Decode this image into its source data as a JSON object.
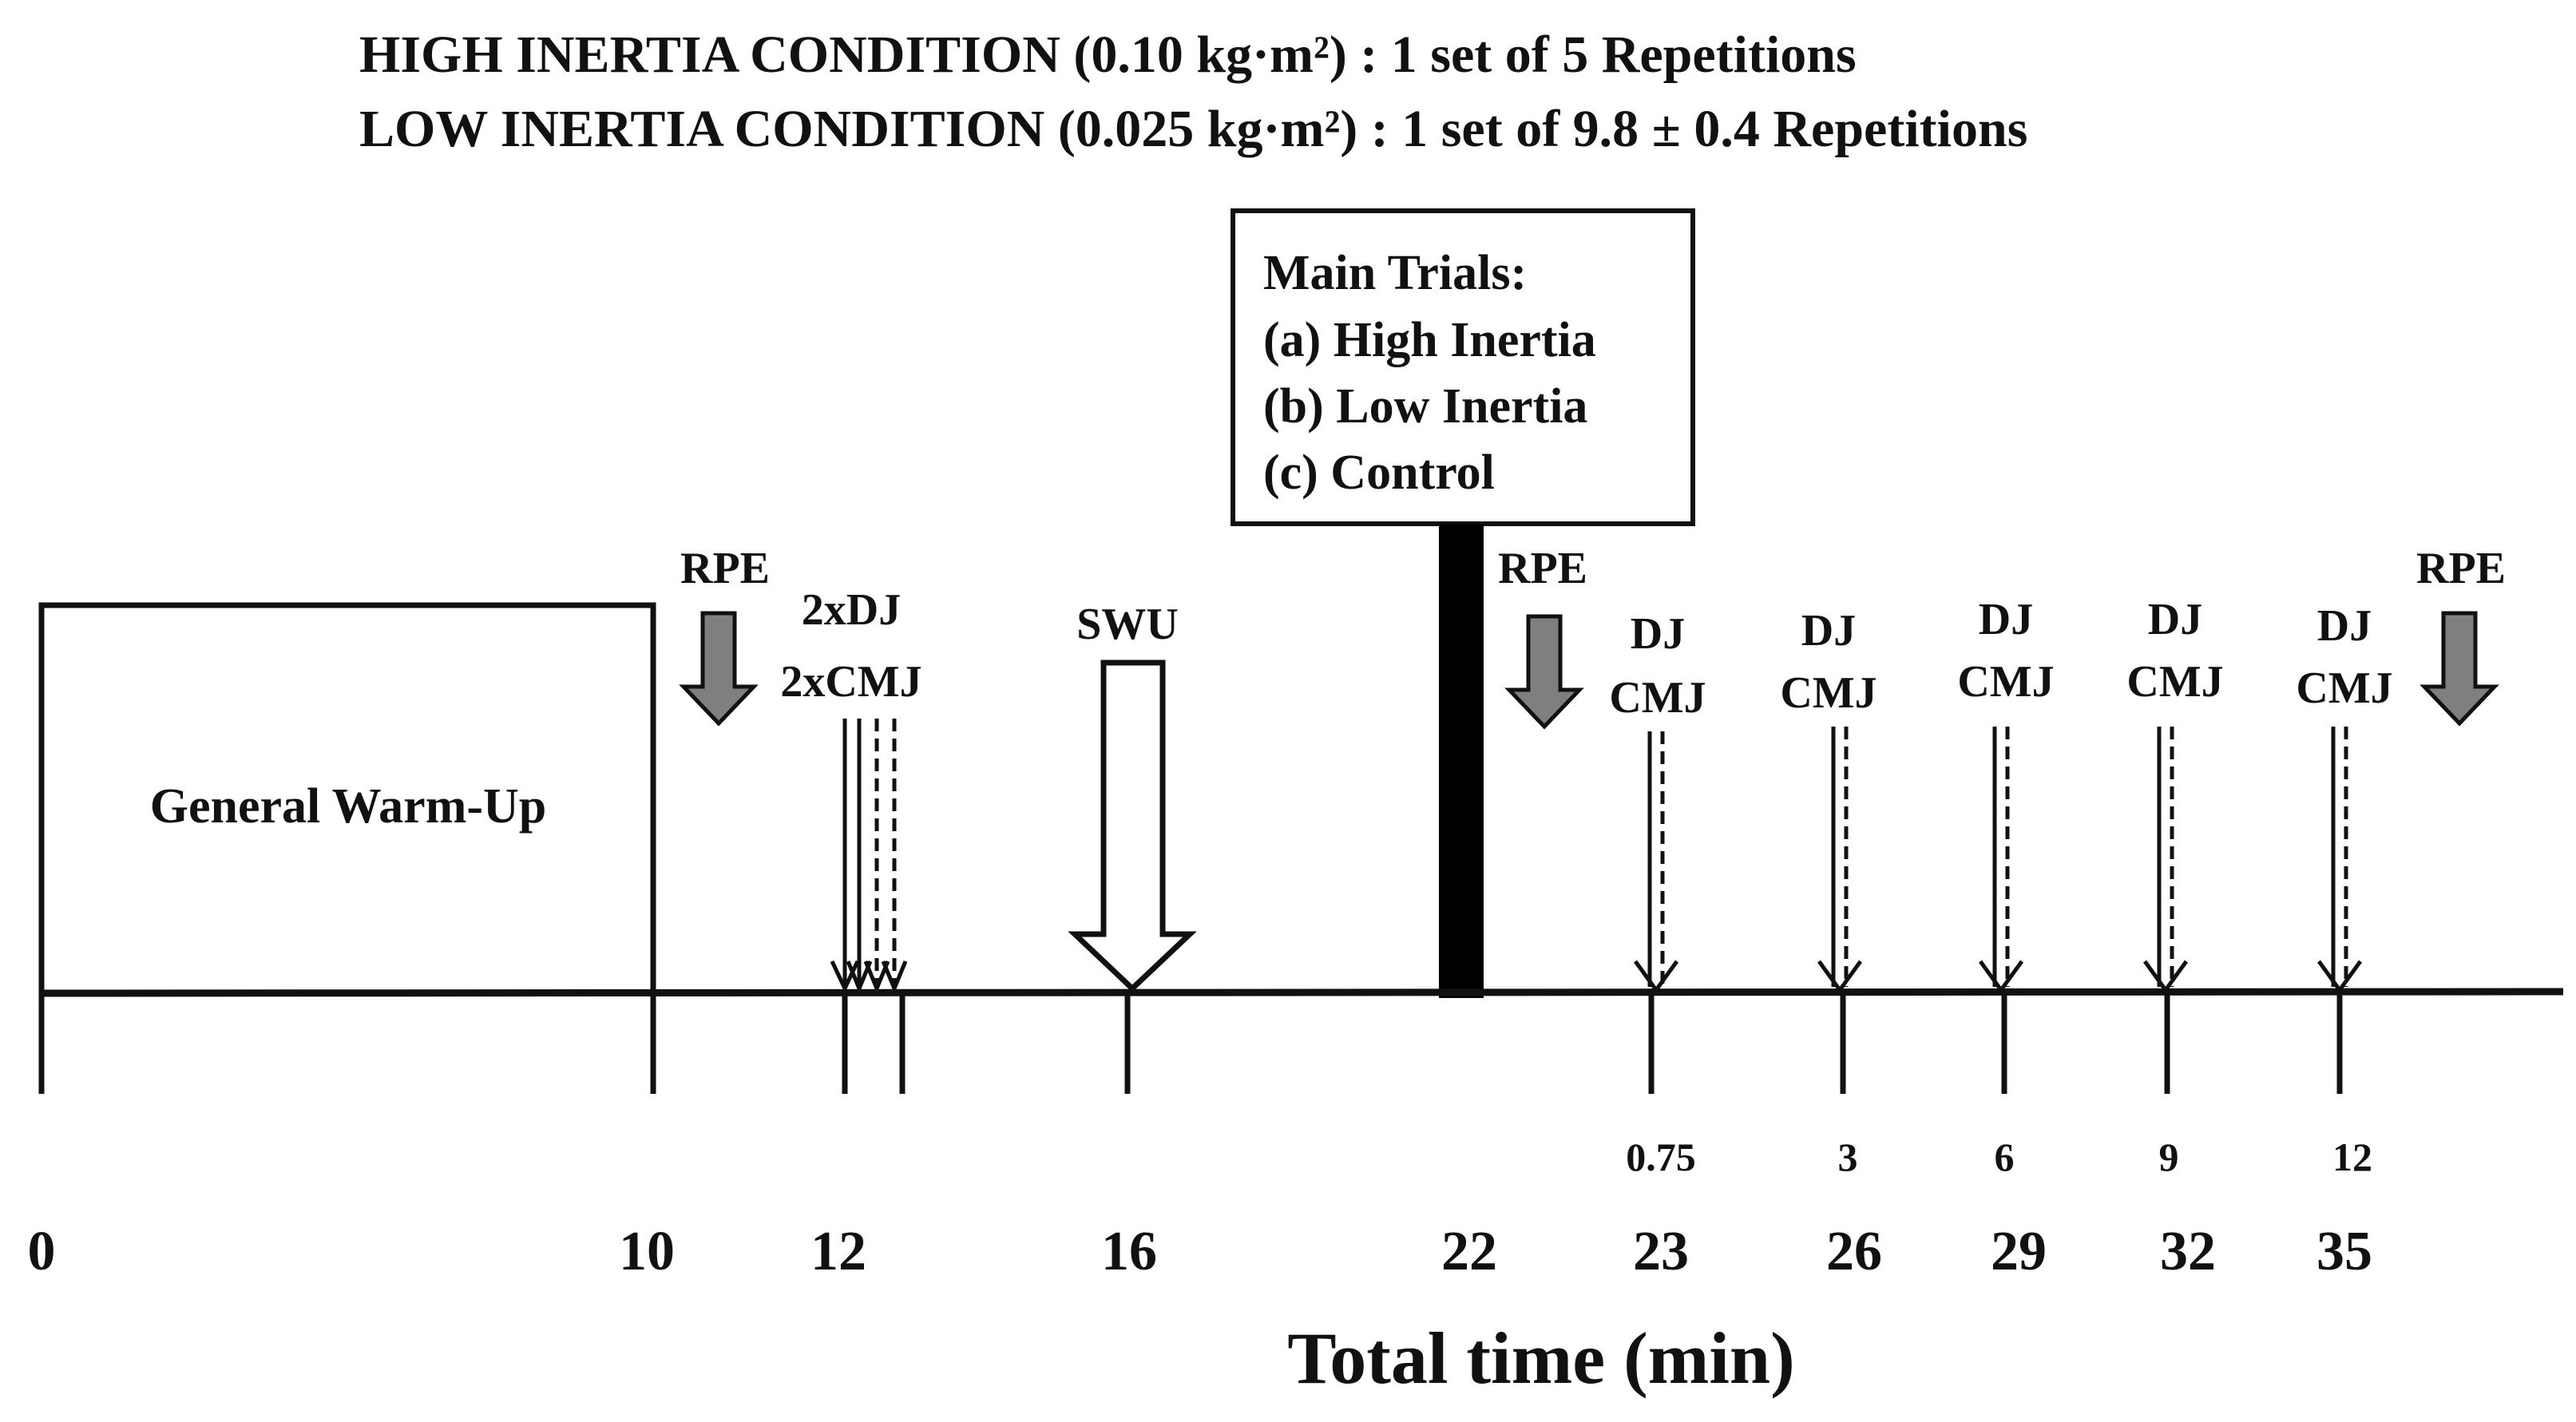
{
  "header": {
    "line1": "HIGH INERTIA  CONDITION  (0.10 kg·m²) : 1 set of 5 Repetitions",
    "line2": "LOW INERTIA  CONDITION  (0.025 kg·m²) : 1 set of 9.8 ± 0.4 Repetitions"
  },
  "main_box": {
    "title": "Main Trials:",
    "items": [
      "(a) High Inertia",
      "(b) Low Inertia",
      "(c) Control"
    ]
  },
  "warmup_label": "General Warm-Up",
  "rpe_label": "RPE",
  "baseline_tests": {
    "line1": "2xDJ",
    "line2": "2xCMJ"
  },
  "swu_label": "SWU",
  "post_tests": [
    {
      "dj": "DJ",
      "cmj": "CMJ",
      "post_min": "0.75",
      "total_min": "23"
    },
    {
      "dj": "DJ",
      "cmj": "CMJ",
      "post_min": "3",
      "total_min": "26"
    },
    {
      "dj": "DJ",
      "cmj": "CMJ",
      "post_min": "6",
      "total_min": "29"
    },
    {
      "dj": "DJ",
      "cmj": "CMJ",
      "post_min": "9",
      "total_min": "32"
    },
    {
      "dj": "DJ",
      "cmj": "CMJ",
      "post_min": "12",
      "total_min": "35"
    }
  ],
  "time_ticks": [
    "0",
    "10",
    "12",
    "16",
    "22"
  ],
  "axis_label": "Total time (min)",
  "colors": {
    "ink": "#111111",
    "rpe_arrow": "#7f7f7f"
  }
}
